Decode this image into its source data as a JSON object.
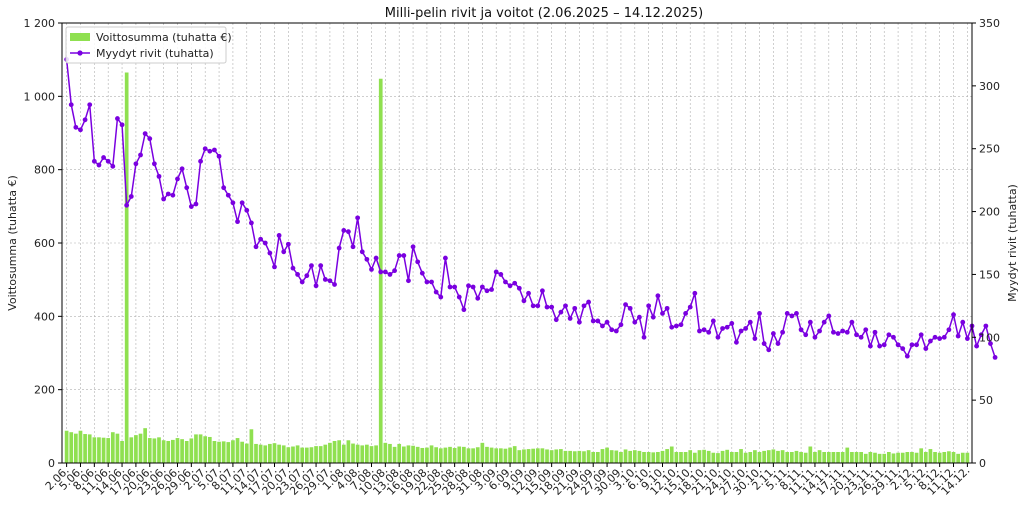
{
  "chart_data": {
    "type": "bar+line",
    "title": "Milli-pelin rivit ja voitot (2.06.2025 – 14.12.2025)",
    "ylabel_left": "Voittosumma (tuhatta €)",
    "ylabel_right": "Myydyt rivit (tuhatta)",
    "ylim_left": [
      0,
      1200
    ],
    "ylim_right": [
      0,
      350
    ],
    "yticks_left": [
      0,
      200,
      400,
      600,
      800,
      1000,
      1200
    ],
    "yticks_left_labels": [
      "0",
      "200",
      "400",
      "600",
      "800",
      "1 000",
      "1 200"
    ],
    "yticks_right": [
      0,
      50,
      100,
      150,
      200,
      250,
      300,
      350
    ],
    "grid": true,
    "legend_position": "top-left",
    "x_start": "2025-06-02",
    "x_end": "2025-12-14",
    "xtick_labels": [
      "2.06.",
      "5.06.",
      "8.06.",
      "11.06.",
      "14.06.",
      "17.06.",
      "20.06.",
      "23.06.",
      "26.06.",
      "29.06.",
      "2.07.",
      "5.07.",
      "8.07.",
      "11.07.",
      "14.07.",
      "17.07.",
      "20.07.",
      "23.07.",
      "26.07.",
      "29.07.",
      "1.08.",
      "4.08.",
      "7.08.",
      "10.08.",
      "13.08.",
      "16.08.",
      "19.08.",
      "22.08.",
      "25.08.",
      "28.08.",
      "31.08.",
      "3.09.",
      "6.09.",
      "9.09.",
      "12.09.",
      "15.09.",
      "18.09.",
      "21.09.",
      "24.09.",
      "27.09.",
      "30.09.",
      "3.10.",
      "6.10.",
      "9.10.",
      "12.10.",
      "15.10.",
      "18.10.",
      "21.10.",
      "24.10.",
      "27.10.",
      "30.10.",
      "2.11.",
      "5.11.",
      "8.11.",
      "11.11.",
      "14.11.",
      "17.11.",
      "20.11.",
      "23.11.",
      "26.11.",
      "29.11.",
      "2.12.",
      "5.12.",
      "8.12.",
      "11.12.",
      "14.12."
    ],
    "series": [
      {
        "name": "Voittosumma (tuhatta €)",
        "type": "bar",
        "axis": "left",
        "color": "#8fe050",
        "values": [
          88,
          84,
          80,
          88,
          79,
          78,
          70,
          70,
          69,
          68,
          84,
          80,
          60,
          1065,
          70,
          76,
          80,
          95,
          68,
          67,
          70,
          62,
          60,
          63,
          68,
          65,
          60,
          67,
          78,
          78,
          73,
          71,
          60,
          58,
          59,
          57,
          62,
          68,
          58,
          53,
          92,
          52,
          50,
          48,
          52,
          54,
          50,
          48,
          43,
          45,
          48,
          42,
          42,
          43,
          46,
          46,
          50,
          55,
          60,
          62,
          50,
          62,
          53,
          50,
          48,
          50,
          46,
          48,
          1048,
          55,
          52,
          44,
          52,
          45,
          48,
          47,
          44,
          41,
          42,
          48,
          43,
          40,
          42,
          44,
          41,
          45,
          44,
          40,
          40,
          43,
          55,
          44,
          42,
          40,
          40,
          39,
          42,
          46,
          35,
          37,
          38,
          39,
          40,
          40,
          37,
          35,
          37,
          38,
          33,
          33,
          32,
          33,
          32,
          35,
          30,
          30,
          38,
          42,
          35,
          34,
          30,
          37,
          33,
          35,
          33,
          30,
          30,
          29,
          30,
          33,
          38,
          45,
          30,
          30,
          30,
          35,
          28,
          35,
          36,
          33,
          28,
          27,
          33,
          36,
          30,
          30,
          38,
          28,
          30,
          35,
          30,
          33,
          35,
          37,
          33,
          35,
          30,
          30,
          33,
          30,
          28,
          45,
          30,
          35,
          30,
          30,
          30,
          30,
          30,
          42,
          30,
          30,
          30,
          25,
          30,
          28,
          25,
          25,
          30,
          26,
          28,
          28,
          30,
          30,
          28,
          40,
          30,
          38,
          30,
          28,
          30,
          32,
          30,
          25,
          28,
          28
        ]
      },
      {
        "name": "Myydyt rivit (tuhatta)",
        "type": "line",
        "axis": "right",
        "color": "#7a00e0",
        "values": [
          321,
          285,
          267,
          265,
          273,
          285,
          240,
          237,
          243,
          240,
          236,
          274,
          269,
          205,
          212,
          238,
          245,
          262,
          258,
          238,
          228,
          210,
          214,
          213,
          226,
          234,
          219,
          204,
          206,
          240,
          250,
          248,
          249,
          244,
          219,
          213,
          207,
          192,
          207,
          201,
          191,
          172,
          178,
          175,
          167,
          156,
          181,
          168,
          174,
          155,
          150,
          144,
          149,
          157,
          141,
          157,
          146,
          145,
          142,
          171,
          185,
          184,
          172,
          195,
          168,
          162,
          154,
          163,
          152,
          152,
          150,
          153,
          165,
          165,
          145,
          172,
          160,
          151,
          144,
          144,
          136,
          132,
          163,
          140,
          140,
          132,
          122,
          141,
          140,
          131,
          140,
          137,
          138,
          152,
          150,
          144,
          141,
          143,
          139,
          129,
          135,
          125,
          125,
          137,
          124,
          124,
          114,
          120,
          125,
          115,
          123,
          112,
          125,
          128,
          113,
          113,
          109,
          112,
          106,
          105,
          110,
          126,
          123,
          112,
          116,
          100,
          125,
          116,
          133,
          119,
          123,
          108,
          109,
          110,
          119,
          124,
          135,
          105,
          106,
          104,
          113,
          100,
          107,
          108,
          111,
          96,
          105,
          107,
          112,
          99,
          119,
          95,
          90,
          103,
          95,
          104,
          119,
          117,
          119,
          106,
          102,
          112,
          100,
          105,
          112,
          117,
          104,
          103,
          105,
          104,
          112,
          102,
          100,
          106,
          93,
          104,
          93,
          94,
          102,
          100,
          94,
          91,
          85,
          94,
          94,
          102,
          91,
          97,
          100,
          99,
          100,
          106,
          118,
          101,
          112,
          99,
          109,
          93,
          102,
          109,
          95,
          84
        ]
      }
    ]
  }
}
